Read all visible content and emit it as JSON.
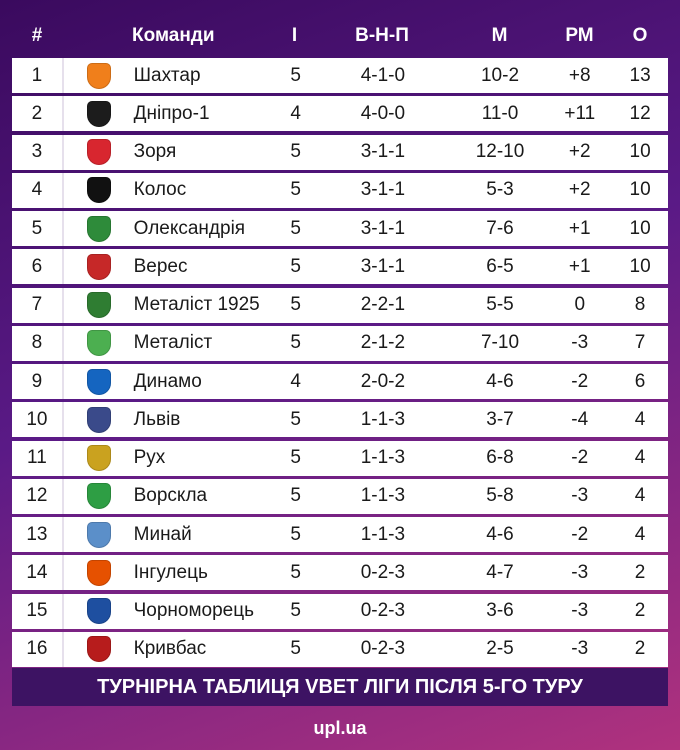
{
  "columns": {
    "pos": "#",
    "team": "Команди",
    "played": "І",
    "wdl": "В-Н-П",
    "goals": "М",
    "diff": "РМ",
    "points": "О"
  },
  "rows": [
    {
      "pos": "1",
      "team": "Шахтар",
      "played": "5",
      "wdl": "4-1-0",
      "goals": "10-2",
      "diff": "+8",
      "points": "13",
      "logo_icon": "shakhtar-logo-icon",
      "logo_color": "#f07f1b"
    },
    {
      "pos": "2",
      "team": "Дніпро-1",
      "played": "4",
      "wdl": "4-0-0",
      "goals": "11-0",
      "diff": "+11",
      "points": "12",
      "logo_icon": "dnipro-1-logo-icon",
      "logo_color": "#1c1c1c"
    },
    {
      "pos": "3",
      "team": "Зоря",
      "played": "5",
      "wdl": "3-1-1",
      "goals": "12-10",
      "diff": "+2",
      "points": "10",
      "logo_icon": "zorya-logo-icon",
      "logo_color": "#d8262f"
    },
    {
      "pos": "4",
      "team": "Колос",
      "played": "5",
      "wdl": "3-1-1",
      "goals": "5-3",
      "diff": "+2",
      "points": "10",
      "logo_icon": "kolos-logo-icon",
      "logo_color": "#111111"
    },
    {
      "pos": "5",
      "team": "Олександрія",
      "played": "5",
      "wdl": "3-1-1",
      "goals": "7-6",
      "diff": "+1",
      "points": "10",
      "logo_icon": "oleksandriya-logo-icon",
      "logo_color": "#2e8b3a"
    },
    {
      "pos": "6",
      "team": "Верес",
      "played": "5",
      "wdl": "3-1-1",
      "goals": "6-5",
      "diff": "+1",
      "points": "10",
      "logo_icon": "veres-logo-icon",
      "logo_color": "#c62828"
    },
    {
      "pos": "7",
      "team": "Металіст 1925",
      "played": "5",
      "wdl": "2-2-1",
      "goals": "5-5",
      "diff": "0",
      "points": "8",
      "logo_icon": "metalist-1925-logo-icon",
      "logo_color": "#2f7d32"
    },
    {
      "pos": "8",
      "team": "Металіст",
      "played": "5",
      "wdl": "2-1-2",
      "goals": "7-10",
      "diff": "-3",
      "points": "7",
      "logo_icon": "metalist-logo-icon",
      "logo_color": "#4caf50"
    },
    {
      "pos": "9",
      "team": "Динамо",
      "played": "4",
      "wdl": "2-0-2",
      "goals": "4-6",
      "diff": "-2",
      "points": "6",
      "logo_icon": "dynamo-logo-icon",
      "logo_color": "#1565c0"
    },
    {
      "pos": "10",
      "team": "Львів",
      "played": "5",
      "wdl": "1-1-3",
      "goals": "3-7",
      "diff": "-4",
      "points": "4",
      "logo_icon": "lviv-logo-icon",
      "logo_color": "#3a4a8a"
    },
    {
      "pos": "11",
      "team": "Рух",
      "played": "5",
      "wdl": "1-1-3",
      "goals": "6-8",
      "diff": "-2",
      "points": "4",
      "logo_icon": "rukh-logo-icon",
      "logo_color": "#caa21f"
    },
    {
      "pos": "12",
      "team": "Ворскла",
      "played": "5",
      "wdl": "1-1-3",
      "goals": "5-8",
      "diff": "-3",
      "points": "4",
      "logo_icon": "vorskla-logo-icon",
      "logo_color": "#2e9e44"
    },
    {
      "pos": "13",
      "team": "Минай",
      "played": "5",
      "wdl": "1-1-3",
      "goals": "4-6",
      "diff": "-2",
      "points": "4",
      "logo_icon": "mynai-logo-icon",
      "logo_color": "#5b8fc9"
    },
    {
      "pos": "14",
      "team": "Інгулець",
      "played": "5",
      "wdl": "0-2-3",
      "goals": "4-7",
      "diff": "-3",
      "points": "2",
      "logo_icon": "inhulets-logo-icon",
      "logo_color": "#e65100"
    },
    {
      "pos": "15",
      "team": "Чорноморець",
      "played": "5",
      "wdl": "0-2-3",
      "goals": "3-6",
      "diff": "-3",
      "points": "2",
      "logo_icon": "chornomorets-logo-icon",
      "logo_color": "#1e4fa0"
    },
    {
      "pos": "16",
      "team": "Кривбас",
      "played": "5",
      "wdl": "0-2-3",
      "goals": "2-5",
      "diff": "-3",
      "points": "2",
      "logo_icon": "kryvbas-logo-icon",
      "logo_color": "#b71c1c"
    }
  ],
  "footer_title": "ТУРНІРНА ТАБЛИЦЯ VBET ЛІГИ ПІСЛЯ 5-ГО ТУРУ",
  "brand": "upl.ua"
}
